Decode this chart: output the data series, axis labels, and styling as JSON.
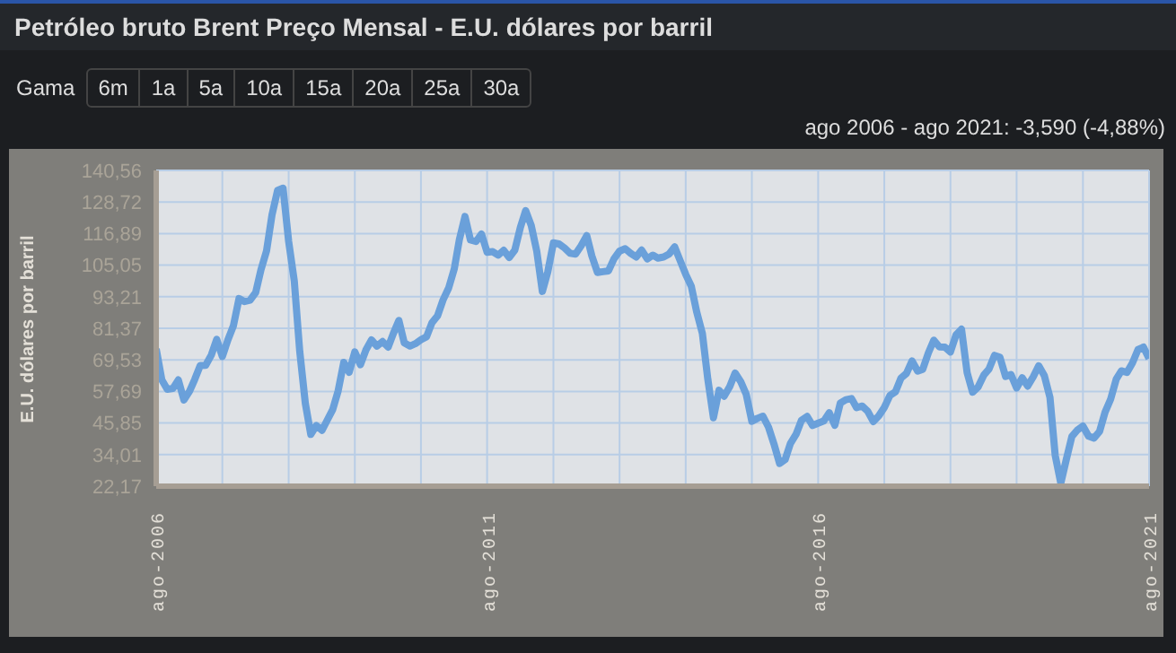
{
  "chart_data": {
    "type": "line",
    "title": "Petróleo bruto Brent Preço Mensal - E.U. dólares por barril",
    "subtitle": "ago 2006 - ago 2021: -3,590 (-4,88%)",
    "annotations": [
      "Gama",
      "6m",
      "1a",
      "5a",
      "10a",
      "15a",
      "20a",
      "25a",
      "30a"
    ],
    "ylabel": "E.U. dólares por barril",
    "x": [
      "2006-08",
      "2006-09",
      "2006-10",
      "2006-11",
      "2006-12",
      "2007-01",
      "2007-02",
      "2007-03",
      "2007-04",
      "2007-05",
      "2007-06",
      "2007-07",
      "2007-08",
      "2007-09",
      "2007-10",
      "2007-11",
      "2007-12",
      "2008-01",
      "2008-02",
      "2008-03",
      "2008-04",
      "2008-05",
      "2008-06",
      "2008-07",
      "2008-08",
      "2008-09",
      "2008-10",
      "2008-11",
      "2008-12",
      "2009-01",
      "2009-02",
      "2009-03",
      "2009-04",
      "2009-05",
      "2009-06",
      "2009-07",
      "2009-08",
      "2009-09",
      "2009-10",
      "2009-11",
      "2009-12",
      "2010-01",
      "2010-02",
      "2010-03",
      "2010-04",
      "2010-05",
      "2010-06",
      "2010-07",
      "2010-08",
      "2010-09",
      "2010-10",
      "2010-11",
      "2010-12",
      "2011-01",
      "2011-02",
      "2011-03",
      "2011-04",
      "2011-05",
      "2011-06",
      "2011-07",
      "2011-08",
      "2011-09",
      "2011-10",
      "2011-11",
      "2011-12",
      "2012-01",
      "2012-02",
      "2012-03",
      "2012-04",
      "2012-05",
      "2012-06",
      "2012-07",
      "2012-08",
      "2012-09",
      "2012-10",
      "2012-11",
      "2012-12",
      "2013-01",
      "2013-02",
      "2013-03",
      "2013-04",
      "2013-05",
      "2013-06",
      "2013-07",
      "2013-08",
      "2013-09",
      "2013-10",
      "2013-11",
      "2013-12",
      "2014-01",
      "2014-02",
      "2014-03",
      "2014-04",
      "2014-05",
      "2014-06",
      "2014-07",
      "2014-08",
      "2014-09",
      "2014-10",
      "2014-11",
      "2014-12",
      "2015-01",
      "2015-02",
      "2015-03",
      "2015-04",
      "2015-05",
      "2015-06",
      "2015-07",
      "2015-08",
      "2015-09",
      "2015-10",
      "2015-11",
      "2015-12",
      "2016-01",
      "2016-02",
      "2016-03",
      "2016-04",
      "2016-05",
      "2016-06",
      "2016-07",
      "2016-08",
      "2016-09",
      "2016-10",
      "2016-11",
      "2016-12",
      "2017-01",
      "2017-02",
      "2017-03",
      "2017-04",
      "2017-05",
      "2017-06",
      "2017-07",
      "2017-08",
      "2017-09",
      "2017-10",
      "2017-11",
      "2017-12",
      "2018-01",
      "2018-02",
      "2018-03",
      "2018-04",
      "2018-05",
      "2018-06",
      "2018-07",
      "2018-08",
      "2018-09",
      "2018-10",
      "2018-11",
      "2018-12",
      "2019-01",
      "2019-02",
      "2019-03",
      "2019-04",
      "2019-05",
      "2019-06",
      "2019-07",
      "2019-08",
      "2019-09",
      "2019-10",
      "2019-11",
      "2019-12",
      "2020-01",
      "2020-02",
      "2020-03",
      "2020-04",
      "2020-05",
      "2020-06",
      "2020-07",
      "2020-08",
      "2020-09",
      "2020-10",
      "2020-11",
      "2020-12",
      "2021-01",
      "2021-02",
      "2021-03",
      "2021-04",
      "2021-05",
      "2021-06",
      "2021-07",
      "2021-08"
    ],
    "series": [
      {
        "color": "#6aa0da",
        "values": [
          73.6,
          62,
          58.5,
          58.8,
          62,
          54.5,
          57.8,
          62.1,
          67.4,
          67.5,
          71.3,
          77.2,
          70.8,
          77.1,
          82.3,
          92.5,
          91.4,
          91.9,
          94.8,
          103.3,
          110.4,
          123.9,
          133.1,
          133.9,
          113.9,
          99.1,
          72.8,
          53.2,
          41.6,
          44.9,
          43.1,
          46.8,
          50.9,
          57.9,
          68.6,
          64.9,
          72.5,
          67.7,
          73.2,
          77,
          74.7,
          76.4,
          74.3,
          79.3,
          84.3,
          75.9,
          74.7,
          75.6,
          77.1,
          78.2,
          83.5,
          86.1,
          92,
          96.5,
          103.7,
          114.6,
          123.3,
          114.5,
          113.9,
          116.7,
          109.9,
          110.1,
          108.8,
          110.6,
          107.9,
          110.7,
          119.3,
          125.5,
          119.8,
          110.3,
          95.2,
          102.6,
          113.4,
          113,
          111.5,
          109.5,
          109.2,
          112.3,
          116.1,
          108.5,
          102.3,
          102.6,
          102.9,
          107.4,
          110.3,
          111.2,
          109.5,
          108.1,
          110.7,
          107.4,
          108.8,
          107.7,
          108.1,
          109.2,
          111.9,
          106.8,
          101.6,
          97.1,
          87.4,
          79.4,
          62.3,
          47.8,
          58.1,
          55.9,
          59.5,
          64.6,
          61.3,
          56.6,
          46.5,
          47.6,
          48.4,
          44.3,
          38,
          30.7,
          32.2,
          38.2,
          41.6,
          46.9,
          48.3,
          44.9,
          45.8,
          46.6,
          49.7,
          45,
          53.3,
          54.6,
          55,
          51.6,
          52.2,
          50.3,
          46.4,
          48.5,
          51.7,
          56.2,
          57.5,
          62.7,
          64.4,
          69.1,
          65.3,
          66,
          72.1,
          76.9,
          74.4,
          74.3,
          72.5,
          78.9,
          81,
          64.7,
          57.4,
          59.4,
          63.8,
          66,
          71.2,
          70.5,
          63.3,
          64,
          59,
          62.8,
          59.7,
          63.2,
          67.3,
          63.6,
          55.5,
          33.7,
          23.3,
          32.1,
          40.8,
          43.2,
          44.7,
          40.9,
          40.2,
          42.7,
          49.9,
          54.8,
          62.3,
          65.4,
          64.8,
          68.3,
          73.4,
          74.3,
          70
        ]
      }
    ],
    "xlim": [
      "2006-08",
      "2021-08"
    ],
    "xticks": [
      {
        "value": "2006-08",
        "label": "ago-2006"
      },
      {
        "value": "2007-08",
        "label": null
      },
      {
        "value": "2008-08",
        "label": null
      },
      {
        "value": "2009-08",
        "label": null
      },
      {
        "value": "2010-08",
        "label": null
      },
      {
        "value": "2011-08",
        "label": "ago-2011"
      },
      {
        "value": "2012-08",
        "label": null
      },
      {
        "value": "2013-08",
        "label": null
      },
      {
        "value": "2014-08",
        "label": null
      },
      {
        "value": "2015-08",
        "label": null
      },
      {
        "value": "2016-08",
        "label": "ago-2016"
      },
      {
        "value": "2017-08",
        "label": null
      },
      {
        "value": "2018-08",
        "label": null
      },
      {
        "value": "2019-08",
        "label": null
      },
      {
        "value": "2020-08",
        "label": null
      },
      {
        "value": "2021-08",
        "label": "ago-2021"
      }
    ],
    "ylim": [
      22.17,
      140.56
    ],
    "yticks": [
      {
        "value": 22.17,
        "label": "22,17"
      },
      {
        "value": 34.01,
        "label": "34,01"
      },
      {
        "value": 45.85,
        "label": "45,85"
      },
      {
        "value": 57.69,
        "label": "57,69"
      },
      {
        "value": 69.53,
        "label": "69,53"
      },
      {
        "value": 81.37,
        "label": "81,37"
      },
      {
        "value": 93.21,
        "label": "93,21"
      },
      {
        "value": 105.05,
        "label": "105,05"
      },
      {
        "value": 116.89,
        "label": "116,89"
      },
      {
        "value": 128.72,
        "label": "128,72"
      },
      {
        "value": 140.56,
        "label": "140,56"
      }
    ],
    "grid": true,
    "legend": false,
    "marker": "none",
    "line_style": "solid"
  }
}
